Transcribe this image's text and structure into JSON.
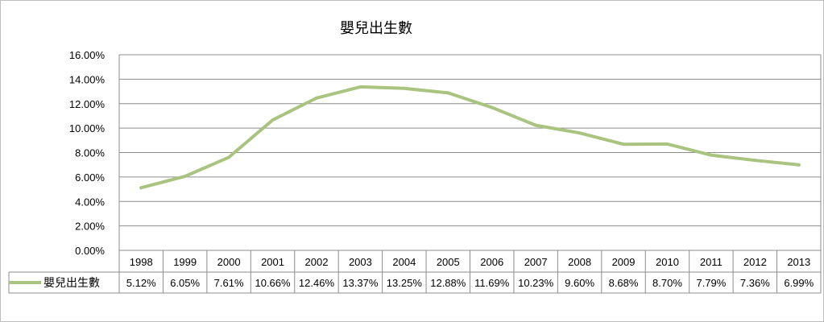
{
  "chart_data": {
    "type": "line",
    "title": "嬰兒出生數",
    "categories": [
      "1998",
      "1999",
      "2000",
      "2001",
      "2002",
      "2003",
      "2004",
      "2005",
      "2006",
      "2007",
      "2008",
      "2009",
      "2010",
      "2011",
      "2012",
      "2013"
    ],
    "series": [
      {
        "name": "嬰兒出生數",
        "values": [
          5.12,
          6.05,
          7.61,
          10.66,
          12.46,
          13.37,
          13.25,
          12.88,
          11.69,
          10.23,
          9.6,
          8.68,
          8.7,
          7.79,
          7.36,
          6.99
        ],
        "labels": [
          "5.12%",
          "6.05%",
          "7.61%",
          "10.66%",
          "12.46%",
          "13.37%",
          "13.25%",
          "12.88%",
          "11.69%",
          "10.23%",
          "9.60%",
          "8.68%",
          "8.70%",
          "7.79%",
          "7.36%",
          "6.99%"
        ],
        "color": "#a9c47f"
      }
    ],
    "y_ticks": [
      "0.00%",
      "2.00%",
      "4.00%",
      "6.00%",
      "8.00%",
      "10.00%",
      "12.00%",
      "14.00%",
      "16.00%"
    ],
    "ylim": [
      0,
      16
    ],
    "grid": true,
    "legend": "data-table",
    "colors": {
      "line": "#a9c47f",
      "grid": "#8c8c8c",
      "frame": "#bdbdbd"
    }
  }
}
